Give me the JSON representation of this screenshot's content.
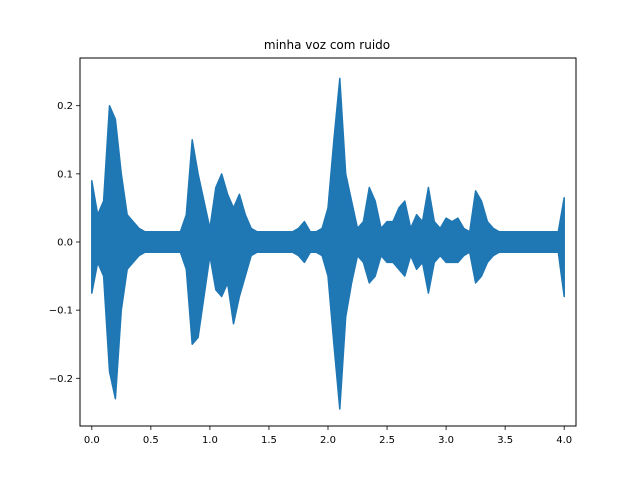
{
  "chart_data": {
    "type": "line",
    "title": "minha voz com ruido",
    "xlabel": "",
    "ylabel": "",
    "xlim": [
      -0.1,
      4.1
    ],
    "ylim": [
      -0.27,
      0.27
    ],
    "xticks": [
      0.0,
      0.5,
      1.0,
      1.5,
      2.0,
      2.5,
      3.0,
      3.5,
      4.0
    ],
    "xtick_labels": [
      "0.0",
      "0.5",
      "1.0",
      "1.5",
      "2.0",
      "2.5",
      "3.0",
      "3.5",
      "4.0"
    ],
    "yticks": [
      -0.2,
      -0.1,
      0.0,
      0.1,
      0.2
    ],
    "ytick_labels": [
      "−0.2",
      "−0.1",
      "0.0",
      "0.1",
      "0.2"
    ],
    "grid": false,
    "legend": "none",
    "series_color": "#1f77b4",
    "series": [
      {
        "x": [
          0.0,
          0.05,
          0.1,
          0.15,
          0.2,
          0.25,
          0.3,
          0.35,
          0.4,
          0.45,
          0.5,
          0.55,
          0.6,
          0.65,
          0.7,
          0.75,
          0.8,
          0.85,
          0.9,
          0.95,
          1.0,
          1.05,
          1.1,
          1.15,
          1.2,
          1.25,
          1.3,
          1.35,
          1.4,
          1.45,
          1.5,
          1.55,
          1.6,
          1.65,
          1.7,
          1.75,
          1.8,
          1.85,
          1.9,
          1.95,
          2.0,
          2.05,
          2.1,
          2.15,
          2.2,
          2.25,
          2.3,
          2.35,
          2.4,
          2.45,
          2.5,
          2.55,
          2.6,
          2.65,
          2.7,
          2.75,
          2.8,
          2.85,
          2.9,
          2.95,
          3.0,
          3.05,
          3.1,
          3.15,
          3.2,
          3.25,
          3.3,
          3.35,
          3.4,
          3.45,
          3.5,
          3.55,
          3.6,
          3.65,
          3.7,
          3.75,
          3.8,
          3.85,
          3.9,
          3.95,
          4.0
        ],
        "y_max": [
          0.09,
          0.04,
          0.06,
          0.2,
          0.18,
          0.1,
          0.04,
          0.03,
          0.02,
          0.015,
          0.015,
          0.015,
          0.015,
          0.015,
          0.015,
          0.015,
          0.04,
          0.15,
          0.1,
          0.06,
          0.02,
          0.08,
          0.1,
          0.07,
          0.05,
          0.07,
          0.04,
          0.02,
          0.015,
          0.015,
          0.015,
          0.015,
          0.015,
          0.015,
          0.015,
          0.02,
          0.03,
          0.015,
          0.015,
          0.02,
          0.05,
          0.15,
          0.24,
          0.1,
          0.06,
          0.02,
          0.03,
          0.08,
          0.06,
          0.02,
          0.03,
          0.03,
          0.05,
          0.06,
          0.02,
          0.04,
          0.03,
          0.08,
          0.03,
          0.02,
          0.035,
          0.03,
          0.035,
          0.02,
          0.015,
          0.075,
          0.06,
          0.03,
          0.02,
          0.015,
          0.015,
          0.015,
          0.015,
          0.015,
          0.015,
          0.015,
          0.015,
          0.015,
          0.015,
          0.015,
          0.065
        ],
        "y_min": [
          -0.075,
          -0.03,
          -0.05,
          -0.19,
          -0.23,
          -0.1,
          -0.04,
          -0.03,
          -0.02,
          -0.015,
          -0.015,
          -0.015,
          -0.015,
          -0.015,
          -0.015,
          -0.015,
          -0.04,
          -0.15,
          -0.14,
          -0.08,
          -0.02,
          -0.07,
          -0.08,
          -0.06,
          -0.12,
          -0.08,
          -0.05,
          -0.02,
          -0.015,
          -0.015,
          -0.015,
          -0.015,
          -0.015,
          -0.015,
          -0.015,
          -0.02,
          -0.03,
          -0.015,
          -0.015,
          -0.02,
          -0.05,
          -0.15,
          -0.245,
          -0.11,
          -0.06,
          -0.02,
          -0.03,
          -0.06,
          -0.05,
          -0.02,
          -0.03,
          -0.03,
          -0.04,
          -0.05,
          -0.02,
          -0.04,
          -0.03,
          -0.075,
          -0.03,
          -0.02,
          -0.03,
          -0.03,
          -0.03,
          -0.02,
          -0.015,
          -0.06,
          -0.05,
          -0.03,
          -0.02,
          -0.015,
          -0.015,
          -0.015,
          -0.015,
          -0.015,
          -0.015,
          -0.015,
          -0.015,
          -0.015,
          -0.015,
          -0.015,
          -0.08
        ]
      }
    ]
  }
}
